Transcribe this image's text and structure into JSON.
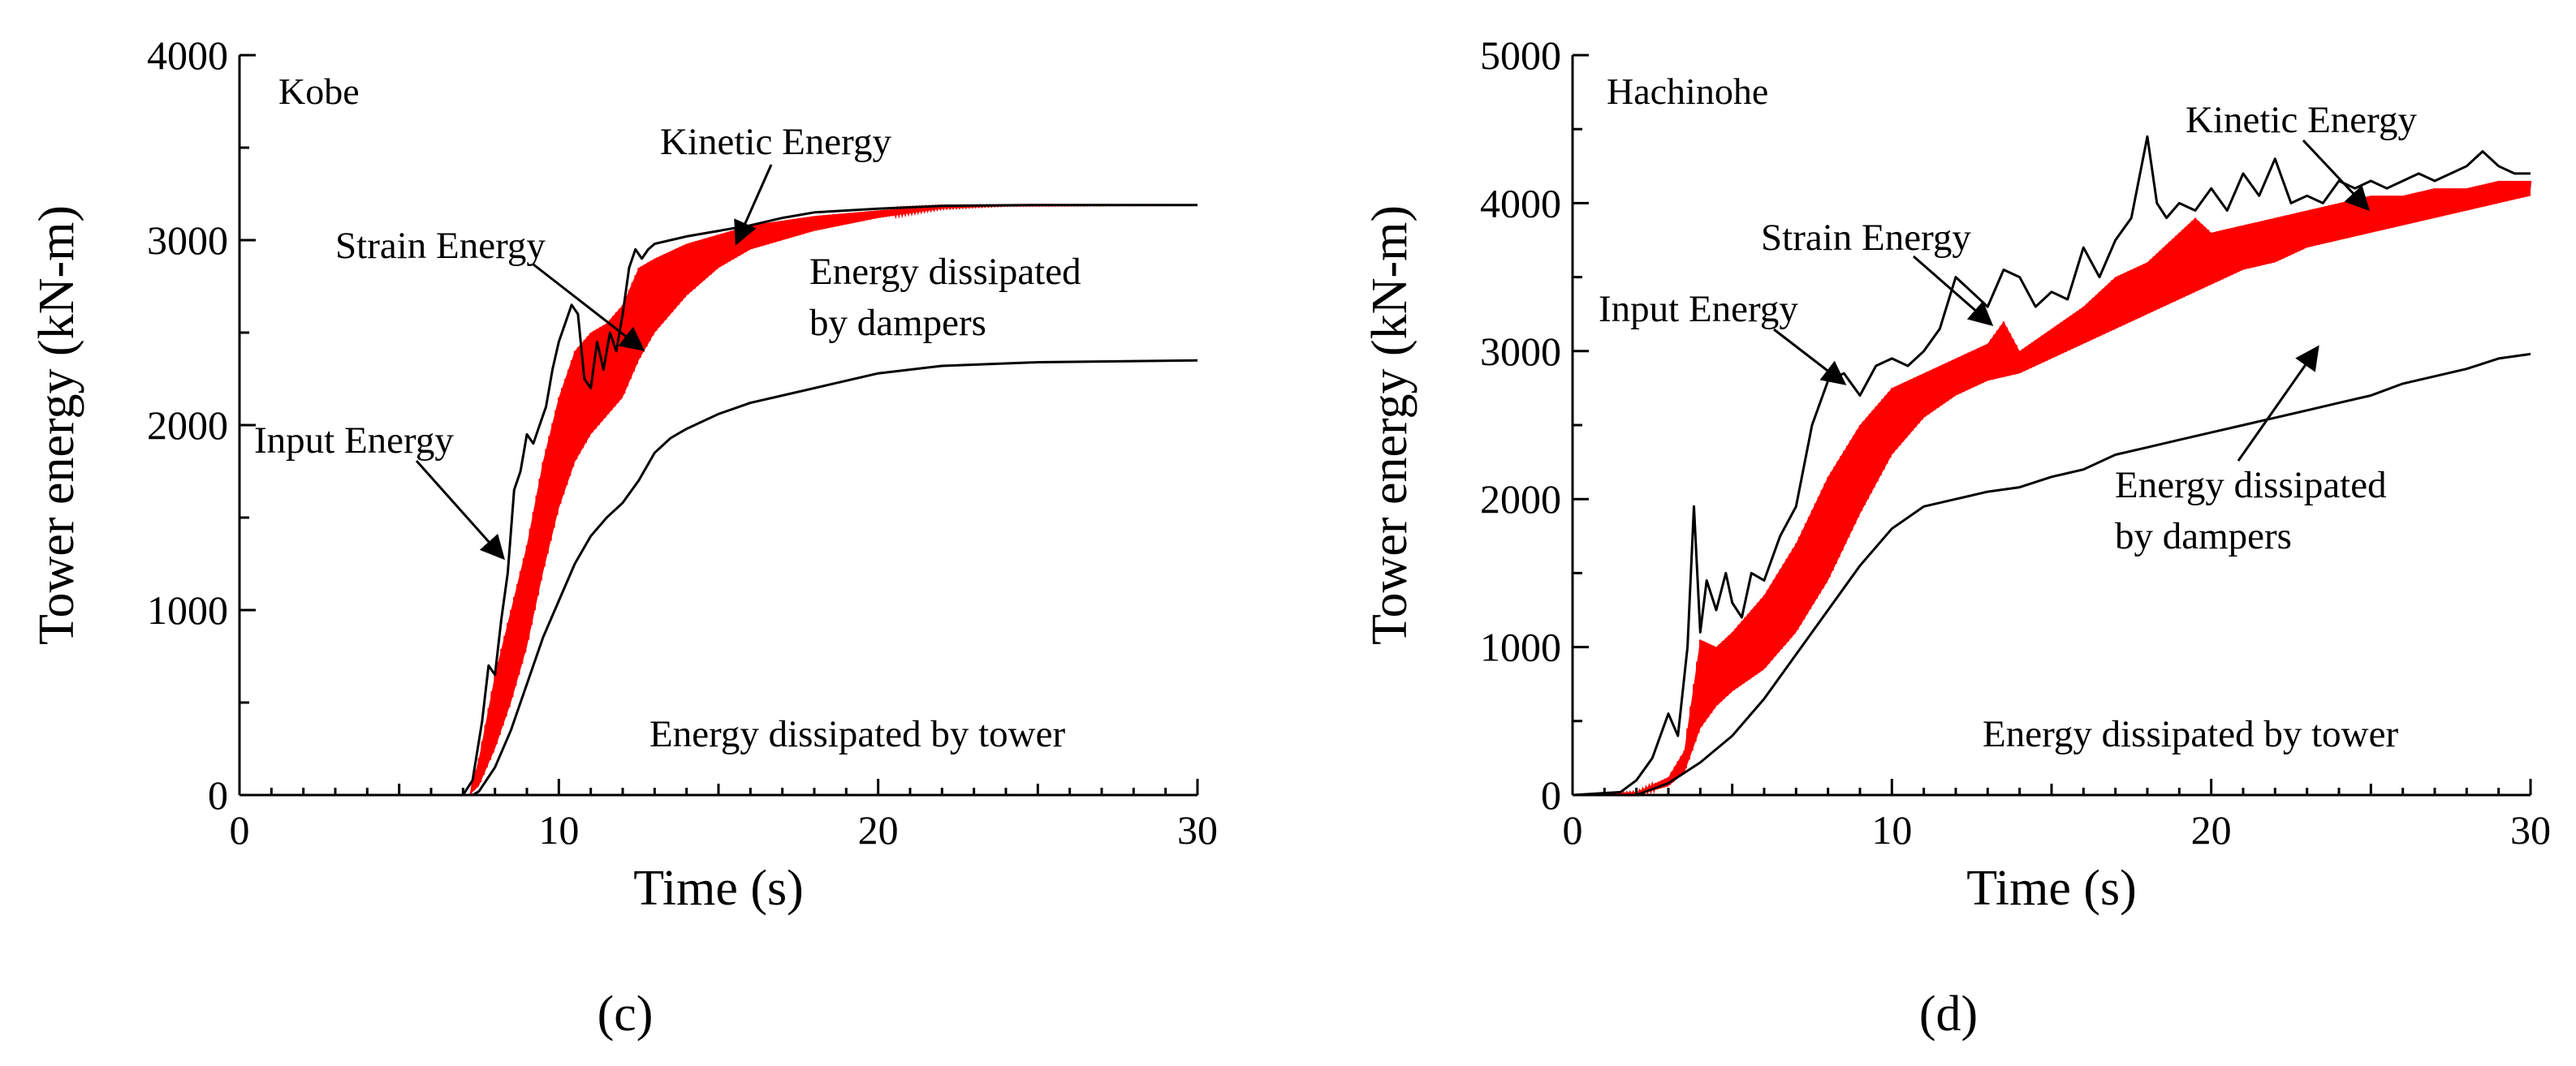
{
  "chart_data": [
    {
      "type": "line",
      "panel": "c",
      "site": "Kobe",
      "xlabel": "Time (s)",
      "ylabel": "Tower energy (kN-m)",
      "xlim": [
        0,
        30
      ],
      "ylim": [
        0,
        4000
      ],
      "xticks": [
        0,
        10,
        20,
        30
      ],
      "yticks": [
        0,
        1000,
        2000,
        3000,
        4000
      ],
      "annotations": {
        "kinetic": "Kinetic Energy",
        "strain": "Strain Energy",
        "input": "Input Energy",
        "dampers_line1": "Energy dissipated",
        "dampers_line2": "by dampers",
        "tower": "Energy dissipated by tower"
      },
      "series": [
        {
          "name": "Input Energy",
          "color": "#000000",
          "x": [
            0,
            7.0,
            7.3,
            7.6,
            7.8,
            8.0,
            8.2,
            8.4,
            8.6,
            8.8,
            9.0,
            9.2,
            9.4,
            9.6,
            9.8,
            10.0,
            10.2,
            10.4,
            10.6,
            10.8,
            11.0,
            11.2,
            11.4,
            11.6,
            11.8,
            12.0,
            12.2,
            12.4,
            12.6,
            12.8,
            13.0,
            13.5,
            14.0,
            15.0,
            16.0,
            17.0,
            18.0,
            20.0,
            22.0,
            25.0,
            30.0
          ],
          "values": [
            0,
            0,
            80,
            400,
            700,
            650,
            950,
            1200,
            1650,
            1750,
            1950,
            1900,
            2000,
            2100,
            2300,
            2450,
            2550,
            2650,
            2600,
            2250,
            2200,
            2450,
            2300,
            2500,
            2400,
            2600,
            2850,
            2950,
            2900,
            2950,
            2980,
            3000,
            3020,
            3050,
            3080,
            3120,
            3150,
            3170,
            3185,
            3190,
            3190
          ]
        },
        {
          "name": "Strain Energy (upper envelope)",
          "color": "#ff0000",
          "x": [
            0,
            7.2,
            7.5,
            8.0,
            8.5,
            9.0,
            9.5,
            10.0,
            10.5,
            11.0,
            11.5,
            12.0,
            12.5,
            13.0,
            14.0,
            15.0,
            16.0,
            18.0,
            20.0,
            22.0,
            24.0,
            30.0
          ],
          "values": [
            0,
            0,
            200,
            650,
            1000,
            1350,
            1800,
            2150,
            2400,
            2500,
            2550,
            2650,
            2850,
            2900,
            2980,
            3030,
            3080,
            3130,
            3160,
            3185,
            3190,
            3190
          ]
        },
        {
          "name": "Kinetic Energy (lower envelope)",
          "color": "#ff0000",
          "x": [
            0,
            7.2,
            7.5,
            8.0,
            8.5,
            9.0,
            9.5,
            10.0,
            10.5,
            11.0,
            11.5,
            12.0,
            12.5,
            13.0,
            14.0,
            15.0,
            16.0,
            18.0,
            20.0,
            22.0,
            24.0,
            30.0
          ],
          "values": [
            0,
            0,
            50,
            250,
            500,
            800,
            1200,
            1550,
            1800,
            1950,
            2050,
            2150,
            2350,
            2500,
            2700,
            2850,
            2950,
            3050,
            3120,
            3170,
            3185,
            3190
          ]
        },
        {
          "name": "Energy dissipated by dampers",
          "color": "#000000",
          "x": [
            0,
            7.3,
            7.5,
            8.0,
            8.5,
            9.0,
            9.5,
            10.0,
            10.5,
            11.0,
            11.5,
            12.0,
            12.5,
            13.0,
            13.5,
            14.0,
            15.0,
            16.0,
            17.0,
            18.0,
            19.0,
            20.0,
            22.0,
            25.0,
            30.0
          ],
          "values": [
            0,
            0,
            20,
            150,
            350,
            600,
            850,
            1050,
            1250,
            1400,
            1500,
            1580,
            1700,
            1850,
            1930,
            1980,
            2060,
            2120,
            2160,
            2200,
            2240,
            2280,
            2320,
            2340,
            2350
          ]
        }
      ]
    },
    {
      "type": "line",
      "panel": "d",
      "site": "Hachinohe",
      "xlabel": "Time (s)",
      "ylabel": "Tower energy (kN-m)",
      "xlim": [
        0,
        30
      ],
      "ylim": [
        0,
        5000
      ],
      "xticks": [
        0,
        10,
        20,
        30
      ],
      "yticks": [
        0,
        1000,
        2000,
        3000,
        4000,
        5000
      ],
      "annotations": {
        "kinetic": "Kinetic Energy",
        "strain": "Strain Energy",
        "input": "Input Energy",
        "dampers_line1": "Energy dissipated",
        "dampers_line2": "by dampers",
        "tower": "Energy dissipated by tower"
      },
      "series": [
        {
          "name": "Input Energy",
          "color": "#000000",
          "x": [
            0,
            1.5,
            2.0,
            2.5,
            3.0,
            3.3,
            3.6,
            3.8,
            4.0,
            4.2,
            4.5,
            4.8,
            5.0,
            5.3,
            5.6,
            6.0,
            6.5,
            7.0,
            7.5,
            8.0,
            8.5,
            9.0,
            9.5,
            10.0,
            10.5,
            11.0,
            11.5,
            12.0,
            12.5,
            13.0,
            13.5,
            14.0,
            14.5,
            15.0,
            15.5,
            16.0,
            16.5,
            17.0,
            17.5,
            18.0,
            18.3,
            18.6,
            19.0,
            19.5,
            20.0,
            20.5,
            21.0,
            21.5,
            22.0,
            22.5,
            23.0,
            23.5,
            24.0,
            24.5,
            25.0,
            25.5,
            26.0,
            26.5,
            27.0,
            27.5,
            28.0,
            28.5,
            29.0,
            29.5,
            30.0
          ],
          "values": [
            0,
            20,
            100,
            250,
            550,
            400,
            1000,
            1950,
            1100,
            1450,
            1250,
            1500,
            1300,
            1200,
            1500,
            1450,
            1750,
            1950,
            2500,
            2800,
            2850,
            2700,
            2900,
            2950,
            2900,
            3000,
            3150,
            3500,
            3400,
            3300,
            3550,
            3500,
            3300,
            3400,
            3350,
            3700,
            3500,
            3750,
            3900,
            4450,
            4000,
            3900,
            4000,
            3950,
            4100,
            3950,
            4200,
            4050,
            4300,
            4000,
            4050,
            4000,
            4150,
            4100,
            4150,
            4100,
            4150,
            4200,
            4150,
            4200,
            4250,
            4350,
            4250,
            4200,
            4200
          ]
        },
        {
          "name": "Strain Energy (upper envelope)",
          "color": "#ff0000",
          "x": [
            0,
            2.0,
            3.0,
            3.5,
            4.0,
            4.5,
            5.0,
            6.0,
            7.0,
            8.0,
            9.0,
            10.0,
            11.0,
            12.0,
            13.0,
            13.5,
            14.0,
            15.0,
            16.0,
            17.0,
            18.0,
            19.0,
            19.5,
            20.0,
            21.0,
            22.0,
            23.0,
            24.0,
            25.0,
            26.0,
            27.0,
            28.0,
            29.0,
            30.0
          ],
          "values": [
            0,
            20,
            120,
            300,
            1050,
            1000,
            1100,
            1350,
            1700,
            2150,
            2500,
            2750,
            2850,
            2950,
            3050,
            3200,
            3000,
            3150,
            3300,
            3500,
            3600,
            3800,
            3900,
            3800,
            3850,
            3900,
            3950,
            4000,
            4050,
            4050,
            4100,
            4100,
            4150,
            4150
          ]
        },
        {
          "name": "Kinetic Energy (lower envelope)",
          "color": "#ff0000",
          "x": [
            0,
            2.0,
            3.0,
            3.5,
            4.0,
            4.5,
            5.0,
            6.0,
            7.0,
            8.0,
            9.0,
            10.0,
            11.0,
            12.0,
            13.0,
            14.0,
            15.0,
            16.0,
            17.0,
            18.0,
            19.0,
            20.0,
            21.0,
            22.0,
            23.0,
            24.0,
            25.0,
            26.0,
            27.0,
            28.0,
            29.0,
            30.0
          ],
          "values": [
            0,
            0,
            60,
            150,
            450,
            600,
            700,
            850,
            1100,
            1450,
            1900,
            2300,
            2550,
            2700,
            2800,
            2850,
            2950,
            3050,
            3150,
            3250,
            3350,
            3450,
            3550,
            3600,
            3700,
            3750,
            3800,
            3850,
            3900,
            3950,
            4000,
            4050
          ]
        },
        {
          "name": "Energy dissipated by dampers",
          "color": "#000000",
          "x": [
            0,
            2.0,
            3.0,
            3.5,
            4.0,
            5.0,
            6.0,
            7.0,
            8.0,
            9.0,
            10.0,
            11.0,
            12.0,
            13.0,
            14.0,
            15.0,
            16.0,
            17.0,
            18.0,
            19.0,
            20.0,
            21.0,
            22.0,
            23.0,
            24.0,
            25.0,
            26.0,
            27.0,
            28.0,
            29.0,
            30.0
          ],
          "values": [
            0,
            0,
            80,
            150,
            220,
            400,
            650,
            950,
            1250,
            1550,
            1800,
            1950,
            2000,
            2050,
            2080,
            2150,
            2200,
            2300,
            2350,
            2400,
            2450,
            2500,
            2550,
            2600,
            2650,
            2700,
            2780,
            2830,
            2880,
            2950,
            2980
          ]
        }
      ]
    }
  ],
  "panel_labels": [
    "(c)",
    "(d)"
  ]
}
